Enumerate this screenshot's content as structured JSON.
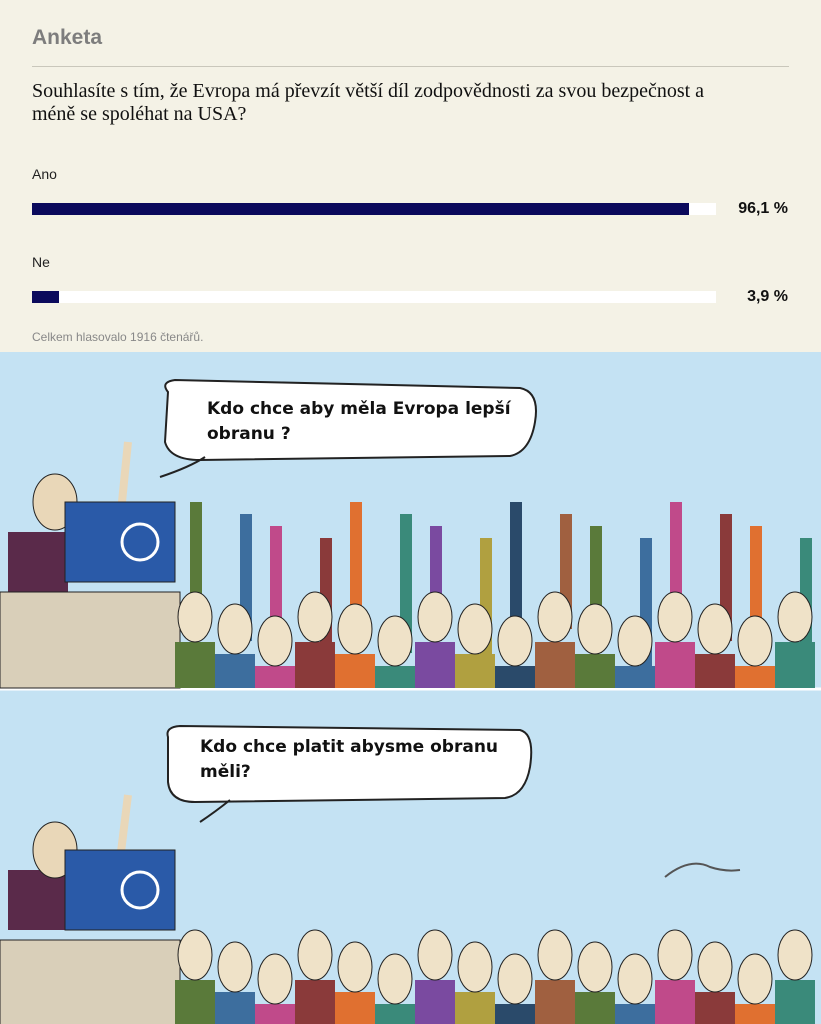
{
  "poll": {
    "title": "Anketa",
    "question": "Souhlasíte s tím, že Evropa má převzít větší díl zodpovědnosti za svou bezpečnost a méně se spoléhat na USA?",
    "options": [
      "Ano",
      "Ne"
    ],
    "values": [
      96.1,
      3.9
    ],
    "value_labels": [
      "96,1 %",
      "3,9 %"
    ],
    "footer": "Celkem hlasovalo 1916 čtenářů."
  },
  "cartoon": {
    "panels": [
      {
        "speech": "Kdo chce aby měla Evropa lepší obranu ?"
      },
      {
        "speech": "Kdo chce platit abysme obranu měli?"
      }
    ]
  }
}
